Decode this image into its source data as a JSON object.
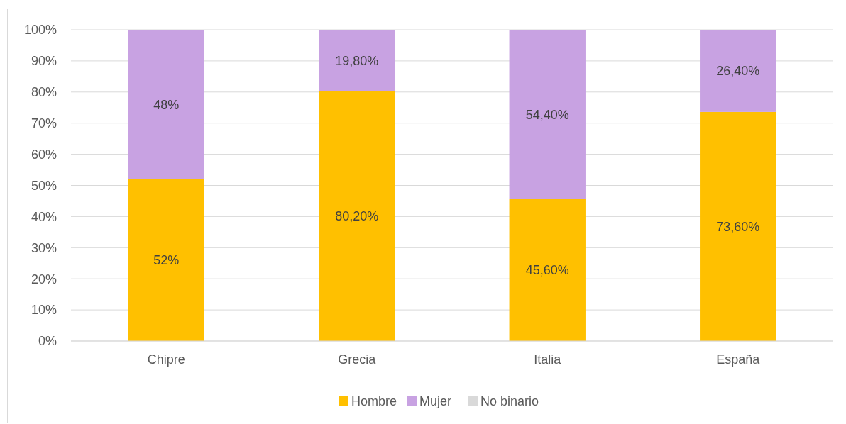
{
  "chart_data": {
    "type": "bar",
    "stacked": true,
    "categories": [
      "Chipre",
      "Grecia",
      "Italia",
      "España"
    ],
    "series": [
      {
        "name": "Hombre",
        "color": "#ffc000",
        "values": [
          52,
          80.2,
          45.6,
          73.6
        ],
        "value_labels": [
          "52%",
          "80,20%",
          "45,60%",
          "73,60%"
        ]
      },
      {
        "name": "Mujer",
        "color": "#c8a2e2",
        "values": [
          48,
          19.8,
          54.4,
          26.4
        ],
        "value_labels": [
          "48%",
          "19,80%",
          "54,40%",
          "26,40%"
        ]
      },
      {
        "name": "No binario",
        "color": "#d9d9d9",
        "values": [
          0,
          0,
          0,
          0
        ],
        "value_labels": [
          null,
          null,
          null,
          null
        ]
      }
    ],
    "ylim": [
      0,
      100
    ],
    "yticks": [
      {
        "value": 0,
        "label": "0%"
      },
      {
        "value": 10,
        "label": "10%"
      },
      {
        "value": 20,
        "label": "20%"
      },
      {
        "value": 30,
        "label": "30%"
      },
      {
        "value": 40,
        "label": "40%"
      },
      {
        "value": 50,
        "label": "50%"
      },
      {
        "value": 60,
        "label": "60%"
      },
      {
        "value": 70,
        "label": "70%"
      },
      {
        "value": 80,
        "label": "80%"
      },
      {
        "value": 90,
        "label": "90%"
      },
      {
        "value": 100,
        "label": "100%"
      }
    ],
    "grid": "y",
    "legend": "bottom"
  }
}
